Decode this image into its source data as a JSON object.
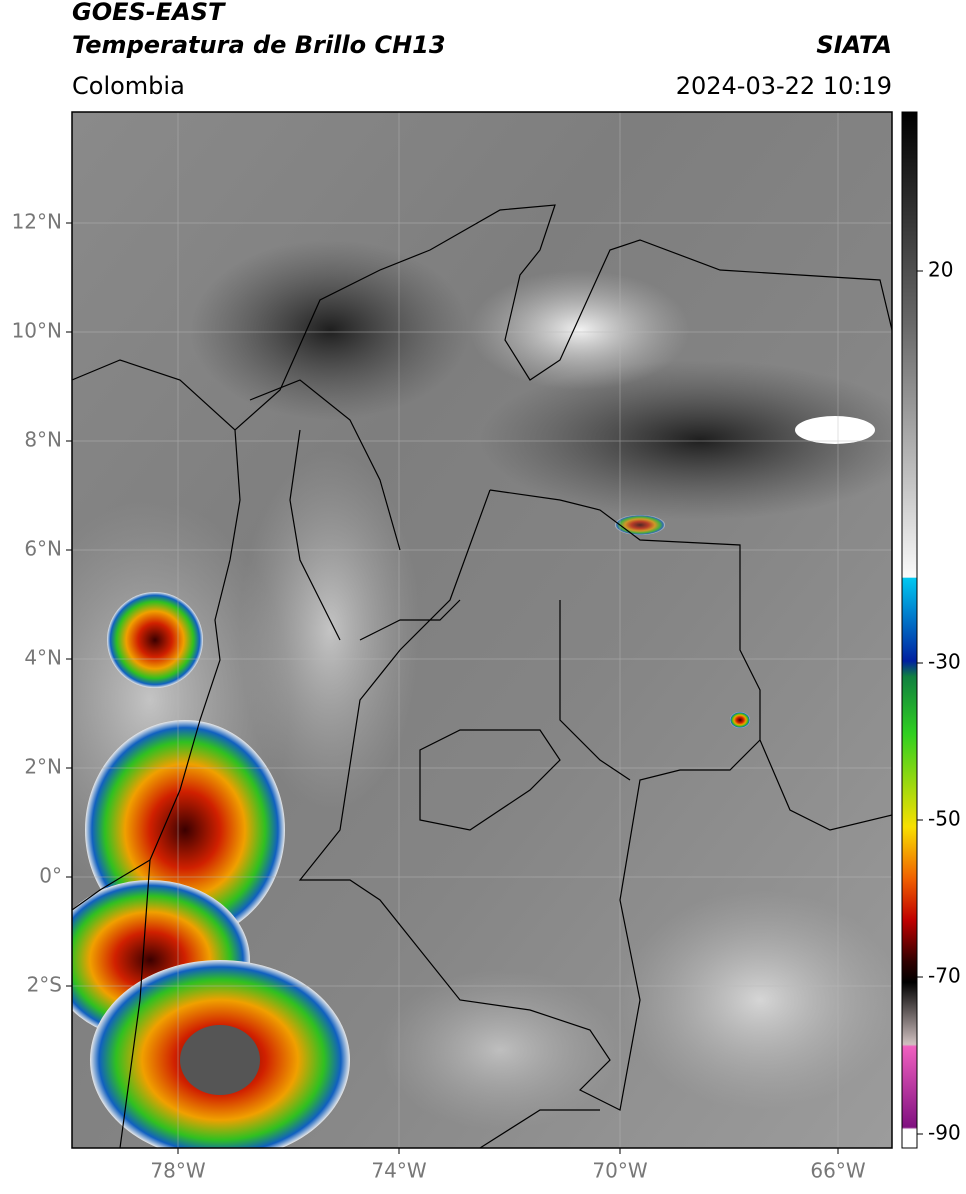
{
  "header": {
    "satellite": "GOES-EAST",
    "product": "Temperatura de Brillo CH13",
    "region": "Colombia",
    "source": "SIATA",
    "datetime": "2024-03-22 10:19"
  },
  "map": {
    "lat_labels": [
      "12°N",
      "10°N",
      "8°N",
      "6°N",
      "4°N",
      "2°N",
      "0°",
      "2°S"
    ],
    "lon_labels": [
      "78°W",
      "74°W",
      "70°W",
      "66°W"
    ]
  },
  "colorbar": {
    "tick_labels": [
      "20",
      "-30",
      "-50",
      "-70",
      "-90"
    ]
  }
}
